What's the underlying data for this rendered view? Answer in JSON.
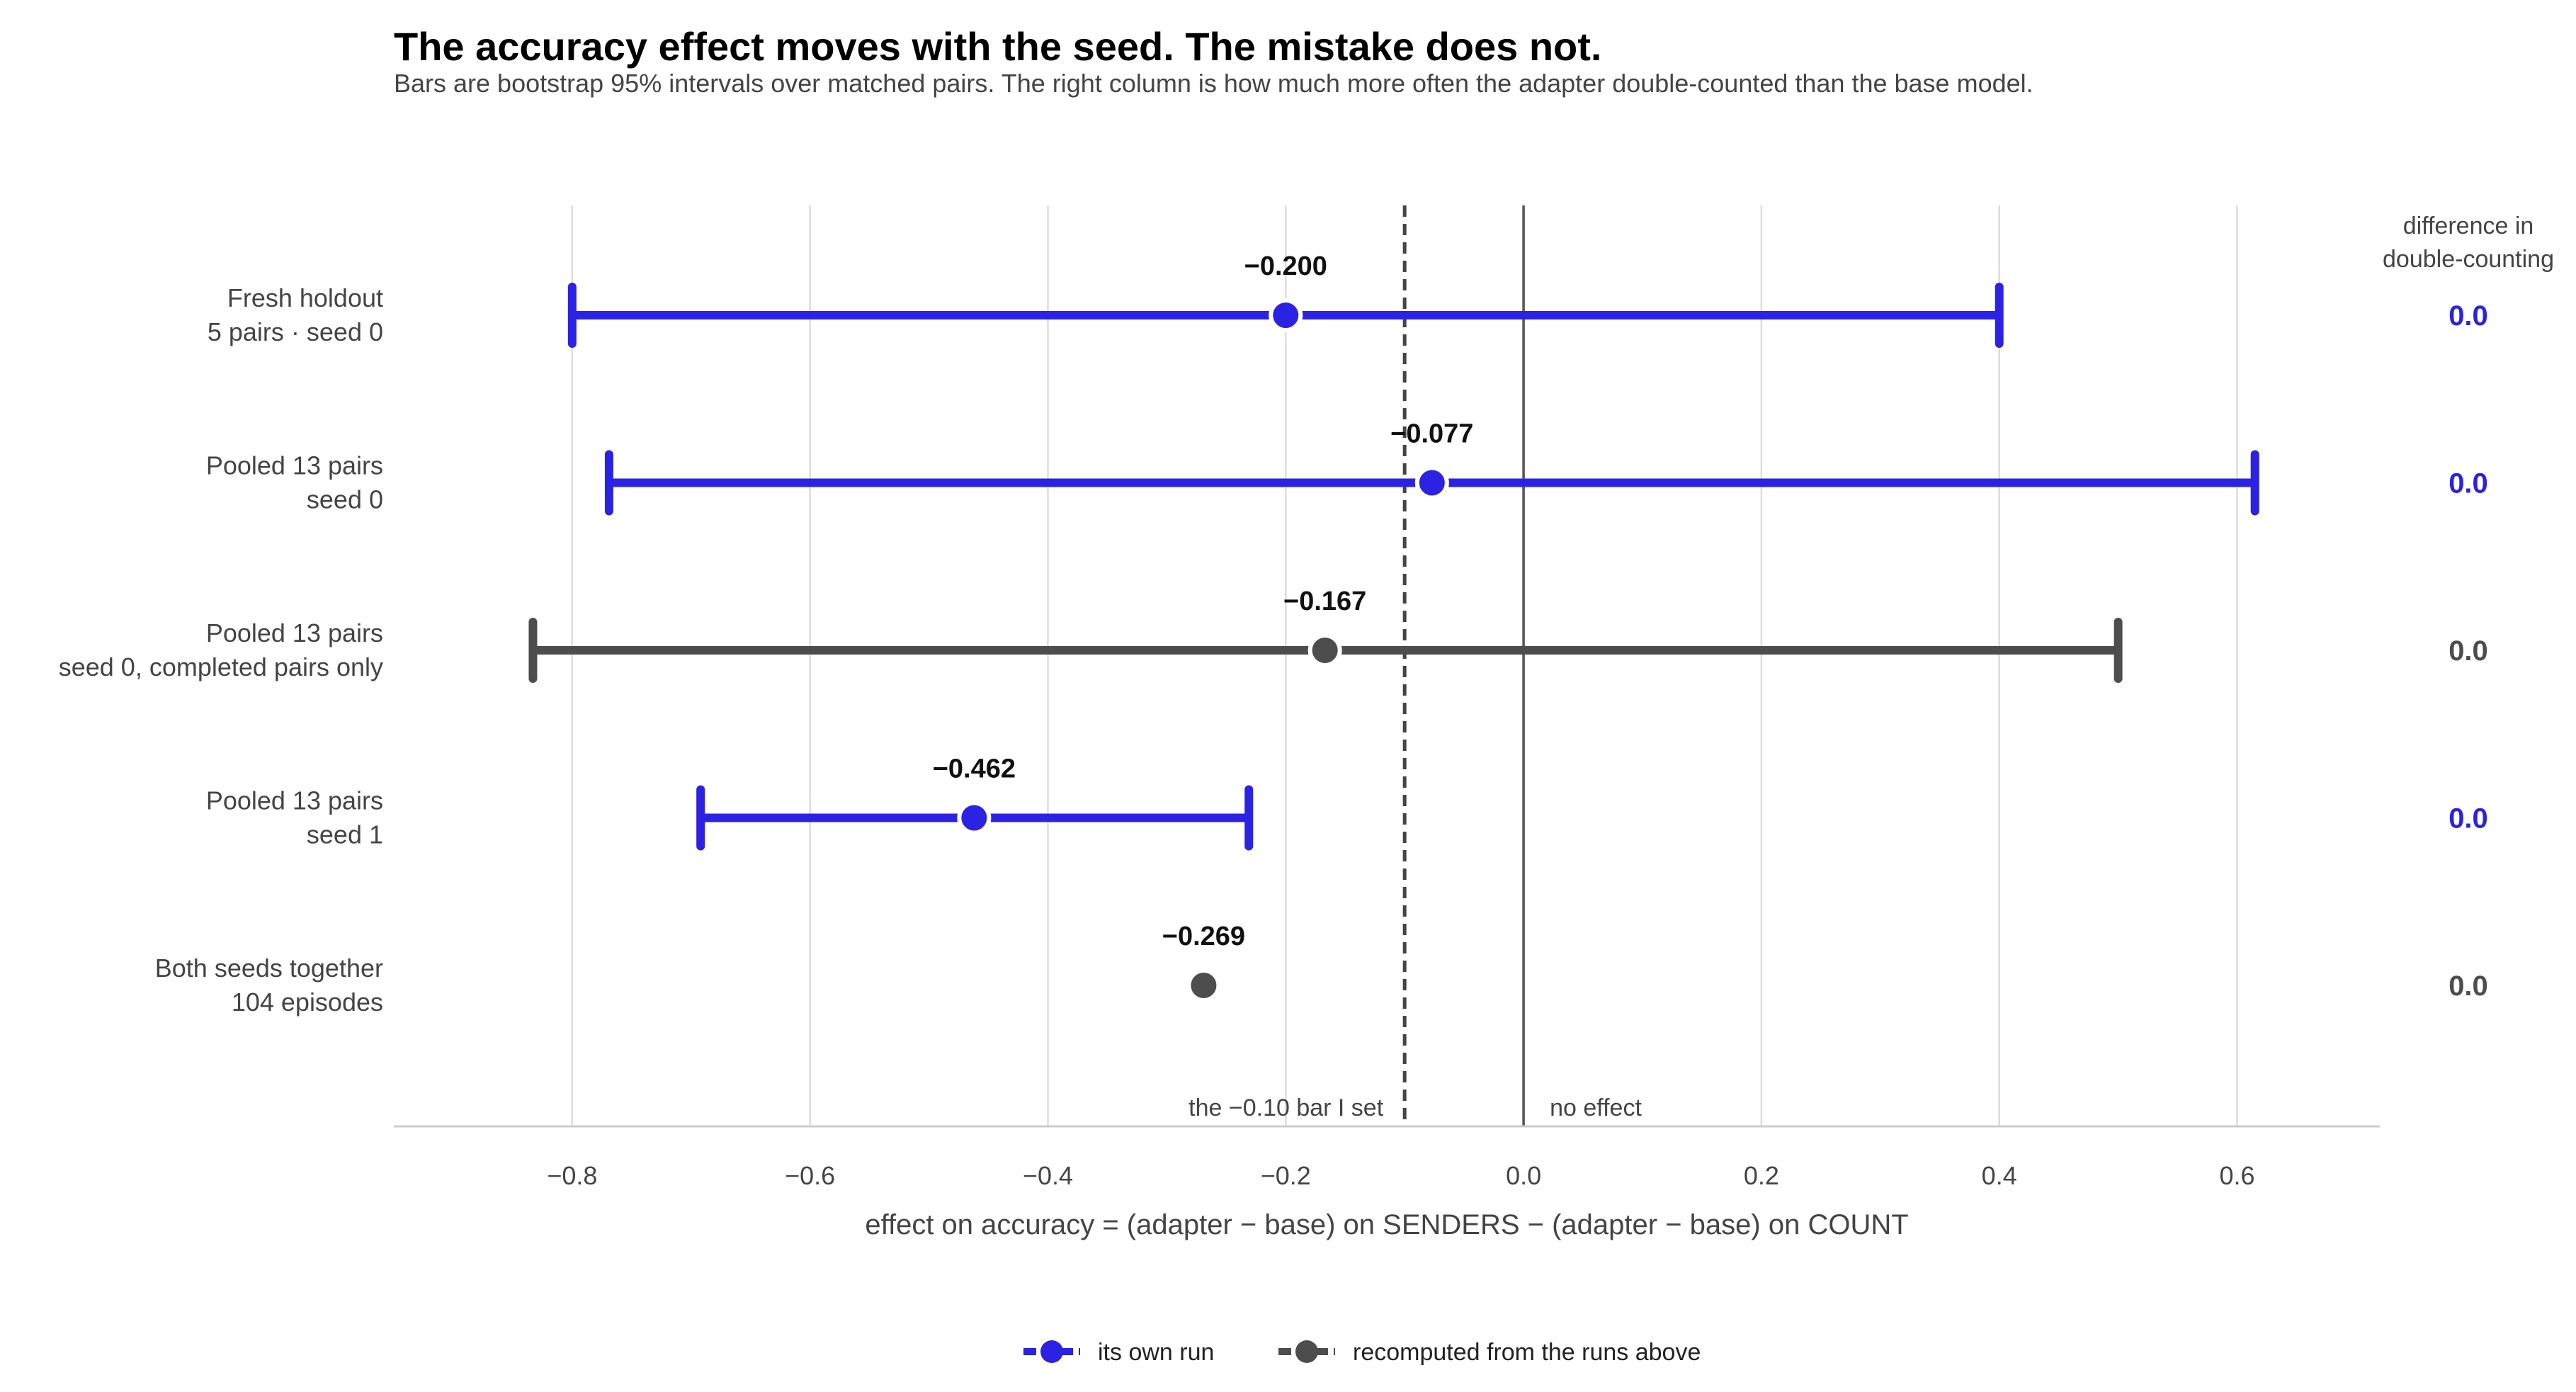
{
  "colors": {
    "own_run": "#2c22e3",
    "recomputed": "#4d4d4d",
    "grid": "#dddddd",
    "zero_line": "#555555",
    "threshold_line": "#444444"
  },
  "chart_data": {
    "type": "scatter",
    "title": "The accuracy effect moves with the seed. The mistake does not.",
    "subtitle": "Bars are bootstrap 95% intervals over matched pairs. The right column is how much more often the adapter double-counted than the base model.",
    "xlabel": "effect on accuracy  =  (adapter − base) on SENDERS  −  (adapter − base) on COUNT",
    "xlim": [
      -0.95,
      0.72
    ],
    "xticks": [
      {
        "value": -0.8,
        "label": "−0.8"
      },
      {
        "value": -0.6,
        "label": "−0.6"
      },
      {
        "value": -0.4,
        "label": "−0.4"
      },
      {
        "value": -0.2,
        "label": "−0.2"
      },
      {
        "value": 0.0,
        "label": "0.0"
      },
      {
        "value": 0.2,
        "label": "0.2"
      },
      {
        "value": 0.4,
        "label": "0.4"
      },
      {
        "value": 0.6,
        "label": "0.6"
      }
    ],
    "grid": true,
    "right_column_header": [
      "difference in",
      "double-counting"
    ],
    "reference_lines": [
      {
        "value": -0.1,
        "label": "the −0.10 bar I set",
        "style": "dashed"
      },
      {
        "value": 0.0,
        "label": "no effect",
        "style": "solid"
      }
    ],
    "rows": [
      {
        "label": [
          "Fresh holdout",
          "5 pairs · seed 0"
        ],
        "estimate": -0.2,
        "estimate_label": "−0.200",
        "ci": [
          -0.8,
          0.4
        ],
        "group": "own",
        "double_counting": "0.0"
      },
      {
        "label": [
          "Pooled 13 pairs",
          "seed 0"
        ],
        "estimate": -0.077,
        "estimate_label": "−0.077",
        "ci": [
          -0.769,
          0.615
        ],
        "group": "own",
        "double_counting": "0.0"
      },
      {
        "label": [
          "Pooled 13 pairs",
          "seed 0, completed pairs only"
        ],
        "estimate": -0.167,
        "estimate_label": "−0.167",
        "ci": [
          -0.833,
          0.5
        ],
        "group": "recomputed",
        "double_counting": "0.0"
      },
      {
        "label": [
          "Pooled 13 pairs",
          "seed 1"
        ],
        "estimate": -0.462,
        "estimate_label": "−0.462",
        "ci": [
          -0.692,
          -0.231
        ],
        "group": "own",
        "double_counting": "0.0"
      },
      {
        "label": [
          "Both seeds together",
          "104 episodes"
        ],
        "estimate": -0.269,
        "estimate_label": "−0.269",
        "ci": null,
        "group": "recomputed",
        "double_counting": "0.0"
      }
    ],
    "legend": {
      "position": "bottom-center",
      "entries": [
        {
          "key": "own",
          "label": "its own run"
        },
        {
          "key": "recomputed",
          "label": "recomputed from the runs above"
        }
      ]
    }
  }
}
